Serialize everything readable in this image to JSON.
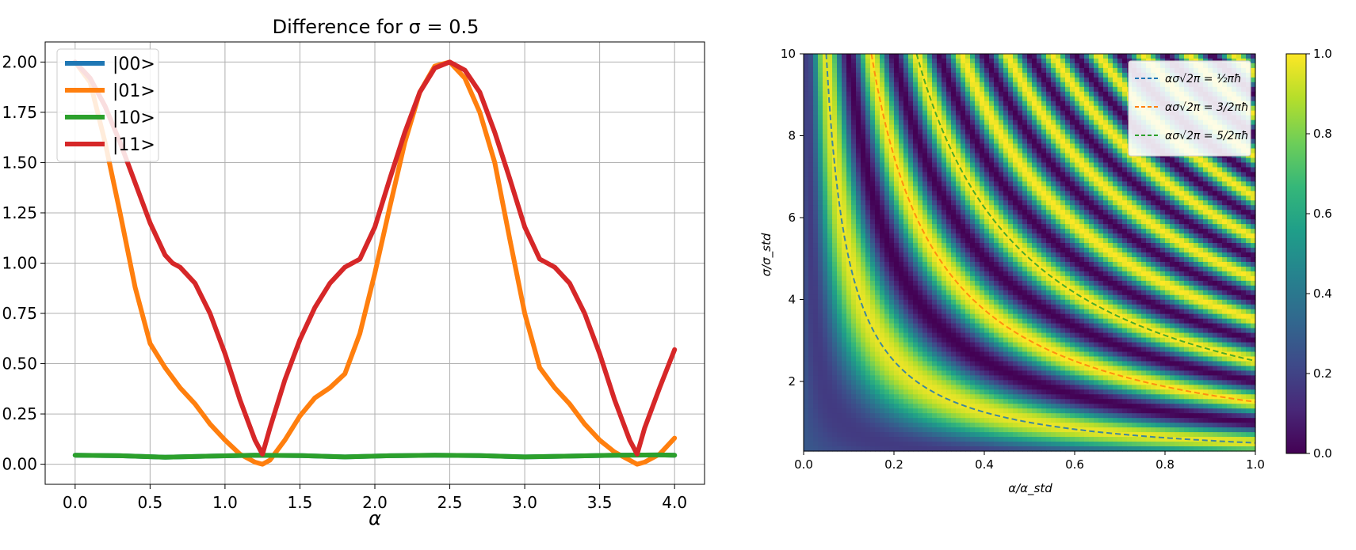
{
  "chart_data": [
    {
      "type": "line",
      "title": "Difference for σ = 0.5",
      "xlabel": "α",
      "ylabel": "",
      "xlim": [
        -0.2,
        4.2
      ],
      "ylim": [
        -0.1,
        2.1
      ],
      "xticks": [
        "0.0",
        "0.5",
        "1.0",
        "1.5",
        "2.0",
        "2.5",
        "3.0",
        "3.5",
        "4.0"
      ],
      "yticks": [
        "0.00",
        "0.25",
        "0.50",
        "0.75",
        "1.00",
        "1.25",
        "1.50",
        "1.75",
        "2.00"
      ],
      "grid": true,
      "legend_position": "top-left",
      "series": [
        {
          "name": "|00>",
          "color": "#1f77b4",
          "x": [
            0,
            0.3,
            0.6,
            0.9,
            1.2,
            1.5,
            1.8,
            2.1,
            2.4,
            2.7,
            3.0,
            3.3,
            3.6,
            3.9,
            4.0
          ],
          "y": [
            0.045,
            0.042,
            0.035,
            0.04,
            0.045,
            0.043,
            0.036,
            0.042,
            0.045,
            0.043,
            0.036,
            0.04,
            0.045,
            0.046,
            0.045
          ]
        },
        {
          "name": "|01>",
          "color": "#ff7f0e",
          "x": [
            0,
            0.1,
            0.2,
            0.3,
            0.4,
            0.5,
            0.6,
            0.7,
            0.8,
            0.9,
            1.0,
            1.1,
            1.2,
            1.25,
            1.3,
            1.4,
            1.5,
            1.6,
            1.7,
            1.8,
            1.9,
            2.0,
            2.1,
            2.2,
            2.3,
            2.4,
            2.5,
            2.6,
            2.7,
            2.8,
            2.9,
            3.0,
            3.1,
            3.2,
            3.3,
            3.4,
            3.5,
            3.6,
            3.7,
            3.75,
            3.8,
            3.9,
            4.0
          ],
          "y": [
            2.0,
            1.9,
            1.6,
            1.25,
            0.88,
            0.6,
            0.48,
            0.38,
            0.3,
            0.2,
            0.12,
            0.05,
            0.01,
            0.0,
            0.02,
            0.12,
            0.24,
            0.33,
            0.38,
            0.45,
            0.65,
            0.95,
            1.28,
            1.6,
            1.85,
            1.98,
            2.0,
            1.92,
            1.75,
            1.5,
            1.12,
            0.75,
            0.48,
            0.38,
            0.3,
            0.2,
            0.12,
            0.06,
            0.02,
            0.0,
            0.01,
            0.05,
            0.13
          ]
        },
        {
          "name": "|10>",
          "color": "#2ca02c",
          "x": [
            0,
            0.3,
            0.6,
            0.9,
            1.2,
            1.5,
            1.8,
            2.1,
            2.4,
            2.7,
            3.0,
            3.3,
            3.6,
            3.9,
            4.0
          ],
          "y": [
            0.045,
            0.042,
            0.035,
            0.04,
            0.045,
            0.043,
            0.036,
            0.042,
            0.045,
            0.043,
            0.036,
            0.04,
            0.045,
            0.046,
            0.045
          ]
        },
        {
          "name": "|11>",
          "color": "#d62728",
          "x": [
            0,
            0.1,
            0.2,
            0.3,
            0.4,
            0.5,
            0.6,
            0.65,
            0.7,
            0.8,
            0.9,
            1.0,
            1.1,
            1.2,
            1.25,
            1.3,
            1.4,
            1.5,
            1.6,
            1.7,
            1.8,
            1.9,
            2.0,
            2.1,
            2.2,
            2.3,
            2.4,
            2.5,
            2.6,
            2.7,
            2.8,
            2.9,
            3.0,
            3.1,
            3.15,
            3.2,
            3.3,
            3.4,
            3.5,
            3.6,
            3.7,
            3.75,
            3.8,
            3.9,
            4.0
          ],
          "y": [
            2.0,
            1.92,
            1.78,
            1.6,
            1.4,
            1.2,
            1.04,
            1.0,
            0.98,
            0.9,
            0.75,
            0.55,
            0.32,
            0.12,
            0.05,
            0.18,
            0.42,
            0.62,
            0.78,
            0.9,
            0.98,
            1.02,
            1.18,
            1.42,
            1.65,
            1.85,
            1.97,
            2.0,
            1.96,
            1.85,
            1.65,
            1.42,
            1.18,
            1.02,
            1.0,
            0.98,
            0.9,
            0.75,
            0.55,
            0.32,
            0.12,
            0.05,
            0.18,
            0.38,
            0.57
          ]
        }
      ]
    },
    {
      "type": "heatmap",
      "title": "",
      "xlabel": "α/α_std",
      "ylabel": "σ/σ_std",
      "xlim": [
        0.0,
        1.0
      ],
      "ylim": [
        0.3,
        10.0
      ],
      "xticks": [
        "0.0",
        "0.2",
        "0.4",
        "0.6",
        "0.8",
        "1.0"
      ],
      "yticks": [
        "2",
        "4",
        "6",
        "8",
        "10"
      ],
      "colormap": "viridis",
      "value_function": "sin²(π · x · y / 2) · (1 − 0.55·exp(−x·y·4))",
      "legend_position": "top-right",
      "series": [
        {
          "name": "ασ√2π = ½πħ",
          "color": "#1f77b4",
          "product": 0.5,
          "label_rhs": "1/2 πħ"
        },
        {
          "name": "ασ√2π = 3/2πħ",
          "color": "#ff7f0e",
          "product": 1.5,
          "label_rhs": "3/2 πħ"
        },
        {
          "name": "ασ√2π = 5/2πħ",
          "color": "#2ca02c",
          "product": 2.5,
          "label_rhs": "5/2 πħ"
        }
      ],
      "colorbar": {
        "range": [
          0.0,
          1.0
        ],
        "ticks": [
          "0.0",
          "0.2",
          "0.4",
          "0.6",
          "0.8",
          "1.0"
        ]
      }
    }
  ]
}
